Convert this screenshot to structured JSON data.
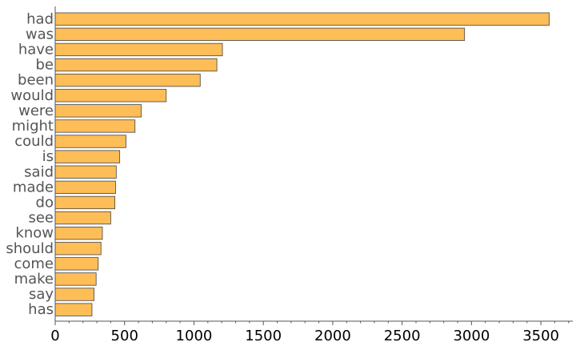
{
  "chart_data": {
    "type": "bar",
    "orientation": "horizontal",
    "title": "",
    "xlabel": "",
    "ylabel": "",
    "categories": [
      "had",
      "was",
      "have",
      "be",
      "been",
      "would",
      "were",
      "might",
      "could",
      "is",
      "said",
      "made",
      "do",
      "see",
      "know",
      "should",
      "come",
      "make",
      "say",
      "has"
    ],
    "values": [
      3560,
      2950,
      1205,
      1165,
      1045,
      800,
      620,
      575,
      510,
      465,
      440,
      435,
      430,
      400,
      340,
      330,
      310,
      295,
      280,
      265
    ],
    "xlim": [
      0,
      3730
    ],
    "xticks": [
      0,
      500,
      1000,
      1500,
      2000,
      2500,
      3000,
      3500
    ],
    "grid": false,
    "colors": {
      "bar_fill": "#fdbd57",
      "bar_stroke": "#444444"
    }
  }
}
